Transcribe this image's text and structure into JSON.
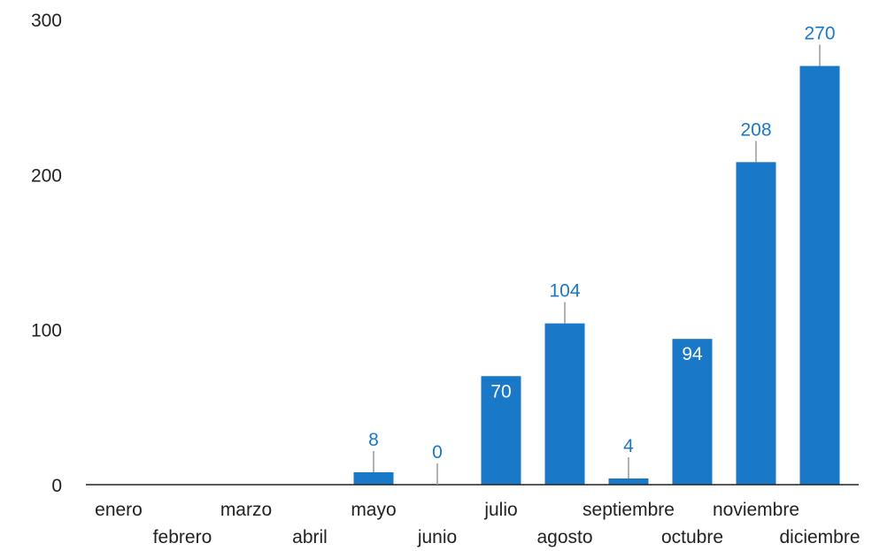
{
  "chart_data": {
    "type": "bar",
    "title": "",
    "xlabel": "",
    "ylabel": "",
    "categories": [
      "enero",
      "febrero",
      "marzo",
      "abril",
      "mayo",
      "junio",
      "julio",
      "agosto",
      "septiembre",
      "octubre",
      "noviembre",
      "diciembre"
    ],
    "values": [
      null,
      null,
      null,
      null,
      8,
      0,
      70,
      104,
      4,
      94,
      208,
      270
    ],
    "data_labels": [
      "",
      "",
      "",
      "",
      "8",
      "0",
      "70",
      "104",
      "4",
      "94",
      "208",
      "270"
    ],
    "ylim": [
      0,
      300
    ],
    "yticks": [
      0,
      100,
      200,
      300
    ],
    "ytick_labels": [
      "0",
      "100",
      "200",
      "300"
    ],
    "grid": false,
    "legend": "none",
    "colors": {
      "bar": "#1a78c8",
      "label": "#1a78c8",
      "leader": "#999999",
      "axis": "#222222"
    }
  }
}
